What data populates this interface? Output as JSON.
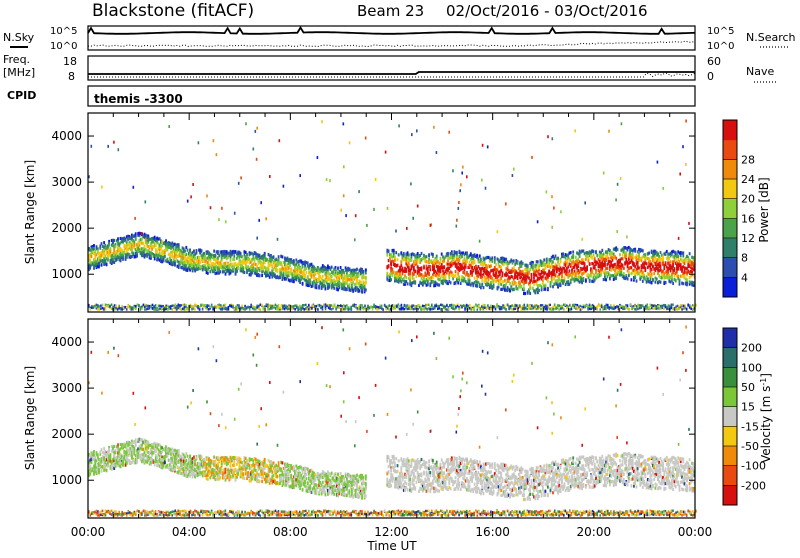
{
  "header": {
    "station": "Blackstone (fitACF)",
    "beam": "Beam 23",
    "date_range": "02/Oct/2016 - 03/Oct/2016"
  },
  "strips": {
    "nsky_label": "N.Sky",
    "nsearch_label": "N.Search",
    "noise_top": "10^5",
    "noise_bottom": "10^0",
    "freq_label_line1": "Freq.",
    "freq_label_line2": "[MHz]",
    "freq_top": "18",
    "freq_bottom": "8",
    "nave_label": "Nave",
    "nave_top": "60",
    "nave_bottom": "0",
    "cpid_label": "CPID",
    "cpid_value": "themis -3300"
  },
  "colors": {
    "power_scale": [
      "#0a1fd8",
      "#2a4fb0",
      "#2f7f6a",
      "#4aa34a",
      "#8fcf3a",
      "#f2c811",
      "#f08a0a",
      "#e84a10",
      "#d80f0f"
    ],
    "velocity_scale": [
      "#1f2fa8",
      "#2a6f6a",
      "#3a8f3a",
      "#7ac83a",
      "#c8c8c4",
      "#f2c811",
      "#f08a0a",
      "#e84a10",
      "#d80f0f"
    ]
  },
  "chart_data": [
    {
      "type": "heatmap",
      "ylabel": "Slant Range [km]",
      "xlabel": "Time UT",
      "x_ticks": [
        "00:00",
        "04:00",
        "08:00",
        "12:00",
        "16:00",
        "20:00",
        "00:00"
      ],
      "y_ticks": [
        1000,
        2000,
        3000,
        4000
      ],
      "ylim": [
        180,
        4500
      ],
      "xlim_hours": [
        0,
        24
      ],
      "colorbar": {
        "label": "Power [dB]",
        "ticks": [
          "4",
          "8",
          "12",
          "16",
          "20",
          "24",
          "28"
        ],
        "range": [
          0,
          30
        ]
      },
      "bands": [
        {
          "name": "near-range",
          "start_h": 0.0,
          "end_h": 24.0,
          "range_km": [
            230,
            330
          ]
        },
        {
          "name": "morning",
          "start_h": 0.0,
          "end_h": 11.0,
          "center_km": [
            1350,
            1500,
            1650,
            1500,
            1300,
            1250,
            1250,
            1200,
            1100,
            950,
            900,
            850
          ],
          "width_km": 250
        },
        {
          "name": "main",
          "start_h": 11.8,
          "end_h": 24.0,
          "center_km": [
            1200,
            1100,
            1100,
            1150,
            1050,
            1000,
            900,
            1050,
            1150,
            1200,
            1250,
            1150,
            1150,
            1100
          ],
          "width_km": 350
        }
      ]
    },
    {
      "type": "heatmap",
      "ylabel": "Slant Range [km]",
      "xlabel": "Time UT",
      "x_ticks": [
        "00:00",
        "04:00",
        "08:00",
        "12:00",
        "16:00",
        "20:00",
        "00:00"
      ],
      "y_ticks": [
        1000,
        2000,
        3000,
        4000
      ],
      "ylim": [
        180,
        4500
      ],
      "xlim_hours": [
        0,
        24
      ],
      "colorbar": {
        "label": "Velocity [m s^-1]",
        "ticks": [
          "200",
          "100",
          "50",
          "15",
          "-15",
          "-50",
          "-100",
          "-200"
        ],
        "range": [
          -250,
          250
        ]
      }
    }
  ]
}
